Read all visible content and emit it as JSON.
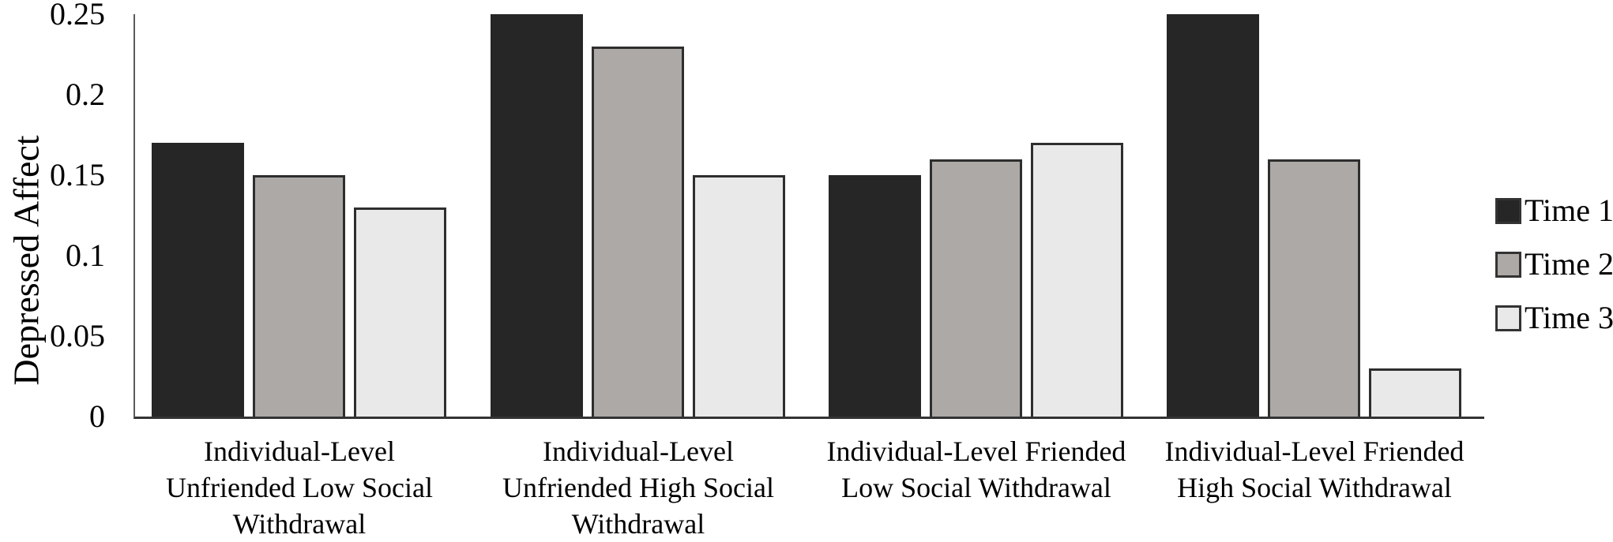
{
  "chart_data": {
    "type": "bar",
    "title": "",
    "ylabel": "Depressed Affect",
    "xlabel": "",
    "ylim": [
      0,
      0.25
    ],
    "yticks": [
      0,
      0.05,
      0.1,
      0.15,
      0.2,
      0.25
    ],
    "ytick_labels": [
      "0",
      "0.05",
      "0.1",
      "0.15",
      "0.2",
      "0.25"
    ],
    "grid": false,
    "legend_position": "right",
    "categories": [
      "Individual-Level Unfriended Low Social Withdrawal",
      "Individual-Level Unfriended High Social Withdrawal",
      "Individual-Level Friended Low Social Withdrawal",
      "Individual-Level Friended High Social Withdrawal"
    ],
    "category_label_lines": [
      [
        "Individual-Level",
        "Unfriended Low Social",
        "Withdrawal"
      ],
      [
        "Individual-Level",
        "Unfriended High Social",
        "Withdrawal"
      ],
      [
        "Individual-Level Friended",
        "Low Social Withdrawal"
      ],
      [
        "Individual-Level Friended",
        "High Social Withdrawal"
      ]
    ],
    "series": [
      {
        "name": "Time 1",
        "color": "#262626",
        "border_color": "#262626",
        "values": [
          0.17,
          0.25,
          0.15,
          0.25
        ]
      },
      {
        "name": "Time 2",
        "color": "#ada9a6",
        "border_color": "#2e2e2e",
        "values": [
          0.15,
          0.23,
          0.16,
          0.16
        ]
      },
      {
        "name": "Time 3",
        "color": "#e9e9e9",
        "border_color": "#2e2e2e",
        "values": [
          0.13,
          0.15,
          0.17,
          0.03
        ]
      }
    ],
    "colors": {
      "axis_line": "#5a5a5a",
      "baseline": "#333333",
      "text": "#000000"
    }
  }
}
